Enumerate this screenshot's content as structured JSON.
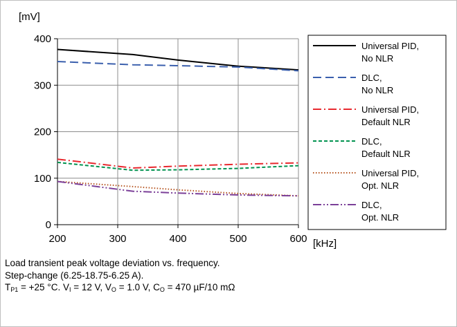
{
  "chart_data": {
    "type": "line",
    "ylabel": "[mV]",
    "xlabel": "[kHz]",
    "xlim": [
      200,
      600
    ],
    "ylim": [
      0,
      400
    ],
    "x_ticks": [
      "200",
      "300",
      "400",
      "500",
      "600"
    ],
    "y_ticks": [
      "0",
      "100",
      "200",
      "300",
      "400"
    ],
    "grid": true,
    "legend_position": "right",
    "x": [
      200,
      325,
      400,
      500,
      600
    ],
    "series": [
      {
        "name": "Universal PID, No NLR",
        "legend_lines": [
          "Universal PID,",
          "No NLR"
        ],
        "values": [
          377,
          366,
          354,
          341,
          333
        ],
        "color": "#000000",
        "dash": "solid"
      },
      {
        "name": "DLC, No NLR",
        "legend_lines": [
          "DLC,",
          "No NLR"
        ],
        "values": [
          351,
          344,
          342,
          339,
          331
        ],
        "color": "#3a5fad",
        "dash": "dash"
      },
      {
        "name": "Universal PID, Default NLR",
        "legend_lines": [
          "Universal PID,",
          "Default NLR"
        ],
        "values": [
          141,
          122,
          126,
          130,
          133
        ],
        "color": "#e8282e",
        "dash": "dashdot"
      },
      {
        "name": "DLC, Default NLR",
        "legend_lines": [
          "DLC,",
          "Default NLR"
        ],
        "values": [
          134,
          117,
          118,
          121,
          127
        ],
        "color": "#00924f",
        "dash": "shortdash"
      },
      {
        "name": "Universal PID, Opt. NLR",
        "legend_lines": [
          "Universal PID,",
          "Opt. NLR"
        ],
        "values": [
          93,
          82,
          75,
          67,
          62
        ],
        "color": "#b5531e",
        "dash": "dot"
      },
      {
        "name": "DLC, Opt. NLR",
        "legend_lines": [
          "DLC,",
          "Opt. NLR"
        ],
        "values": [
          93,
          72,
          68,
          64,
          62
        ],
        "color": "#7b3f98",
        "dash": "dashdotdot"
      }
    ]
  },
  "caption": {
    "line1": "Load transient peak voltage deviation vs. frequency.",
    "line2": "Step-change (6.25-18.75-6.25 A).",
    "line3": {
      "t_sym": "T",
      "t_sub": "P1",
      "t_val": " = +25 °C. V",
      "vi_sub": "I",
      "vi_val": " = 12 V, V",
      "vo_sub": "O",
      "vo_val": " = 1.0 V, C",
      "co_sub": "O",
      "co_val": " = 470 µF/10 mΩ"
    }
  }
}
